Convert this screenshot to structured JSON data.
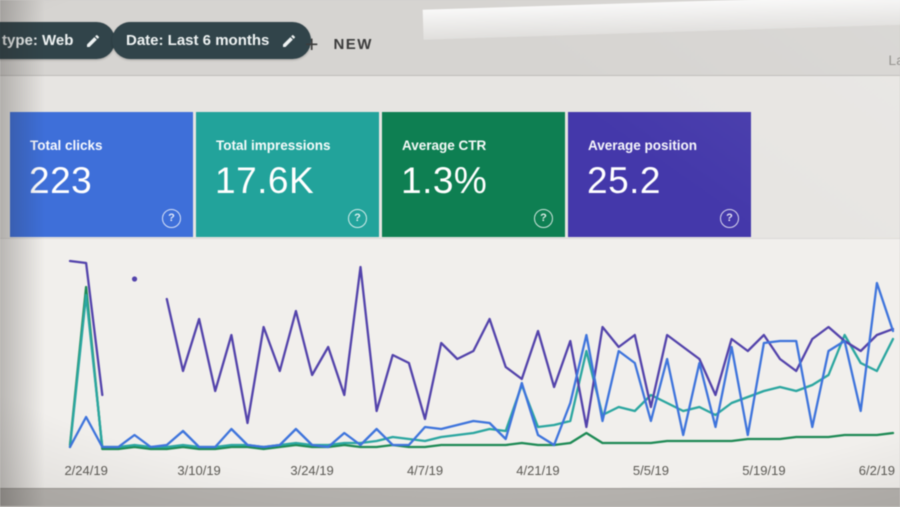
{
  "toolbar": {
    "search_type_chip": "type: Web",
    "date_chip": "Date: Last 6 months",
    "plus": "+",
    "new_button": "NEW",
    "right_clipped_text": "La"
  },
  "cards": [
    {
      "label": "Total clicks",
      "value": "223",
      "color": "#3e6fd9",
      "help": "?"
    },
    {
      "label": "Total impressions",
      "value": "17.6K",
      "color": "#22a39b",
      "help": "?"
    },
    {
      "label": "Average CTR",
      "value": "1.3%",
      "color": "#0e7f52",
      "help": "?"
    },
    {
      "label": "Average position",
      "value": "25.2",
      "color": "#4438aa",
      "help": "?"
    }
  ],
  "colors": {
    "chip_bg": "#31444a",
    "toolbar_bg": "#d6d4d1",
    "page_bg": "#e7e5e2",
    "chart_panel_bg": "#f1efec"
  },
  "chart_data": {
    "type": "line",
    "title": "",
    "xlabel": "",
    "ylabel": "",
    "grid": false,
    "legend": false,
    "x_axis": {
      "num_points": 52,
      "tick_indices": [
        1,
        8,
        15,
        22,
        29,
        36,
        43,
        50
      ],
      "tick_labels": [
        "2/24/19",
        "3/10/19",
        "3/24/19",
        "4/7/19",
        "4/21/19",
        "5/5/19",
        "5/19/19",
        "6/2/19"
      ]
    },
    "y_axis": {
      "visible": false,
      "range": [
        0,
        100
      ],
      "note": "No y-axis shown in UI; series values are estimated percent of plot height (0=baseline, 100=top)."
    },
    "series": [
      {
        "name": "CTR",
        "color": "#1e8a55",
        "values": [
          3,
          82,
          1,
          1,
          2,
          1,
          1,
          2,
          1,
          1,
          2,
          2,
          1,
          2,
          3,
          2,
          2,
          3,
          2,
          2,
          3,
          2,
          2,
          3,
          3,
          3,
          3,
          3,
          4,
          3,
          3,
          4,
          9,
          4,
          4,
          4,
          4,
          5,
          5,
          5,
          5,
          5,
          6,
          6,
          6,
          7,
          7,
          7,
          8,
          8,
          8,
          9
        ]
      },
      {
        "name": "Impressions",
        "color": "#2ba6a0",
        "values": [
          2,
          78,
          2,
          2,
          3,
          2,
          2,
          3,
          2,
          2,
          3,
          3,
          2,
          3,
          4,
          3,
          3,
          4,
          4,
          5,
          7,
          6,
          5,
          7,
          8,
          9,
          11,
          10,
          33,
          12,
          13,
          15,
          50,
          18,
          22,
          20,
          28,
          24,
          20,
          22,
          18,
          24,
          27,
          30,
          32,
          30,
          33,
          38,
          58,
          44,
          40,
          56
        ]
      },
      {
        "name": "Average position",
        "color": "#5343ab",
        "values": [
          95,
          94,
          28,
          null,
          86,
          null,
          76,
          40,
          66,
          30,
          58,
          14,
          62,
          40,
          70,
          38,
          52,
          28,
          92,
          20,
          48,
          44,
          16,
          54,
          46,
          50,
          66,
          42,
          36,
          60,
          32,
          55,
          12,
          62,
          52,
          58,
          22,
          58,
          52,
          46,
          28,
          56,
          50,
          58,
          46,
          40,
          56,
          62,
          55,
          50,
          58,
          61
        ]
      },
      {
        "name": "Clicks",
        "color": "#3e74dc",
        "values": [
          2,
          17,
          2,
          2,
          8,
          2,
          3,
          10,
          2,
          2,
          11,
          3,
          2,
          3,
          11,
          3,
          2,
          9,
          3,
          11,
          3,
          3,
          12,
          11,
          13,
          15,
          14,
          6,
          34,
          8,
          3,
          24,
          58,
          15,
          50,
          44,
          15,
          46,
          8,
          44,
          12,
          52,
          8,
          54,
          55,
          55,
          12,
          50,
          55,
          20,
          84,
          60
        ]
      }
    ]
  }
}
